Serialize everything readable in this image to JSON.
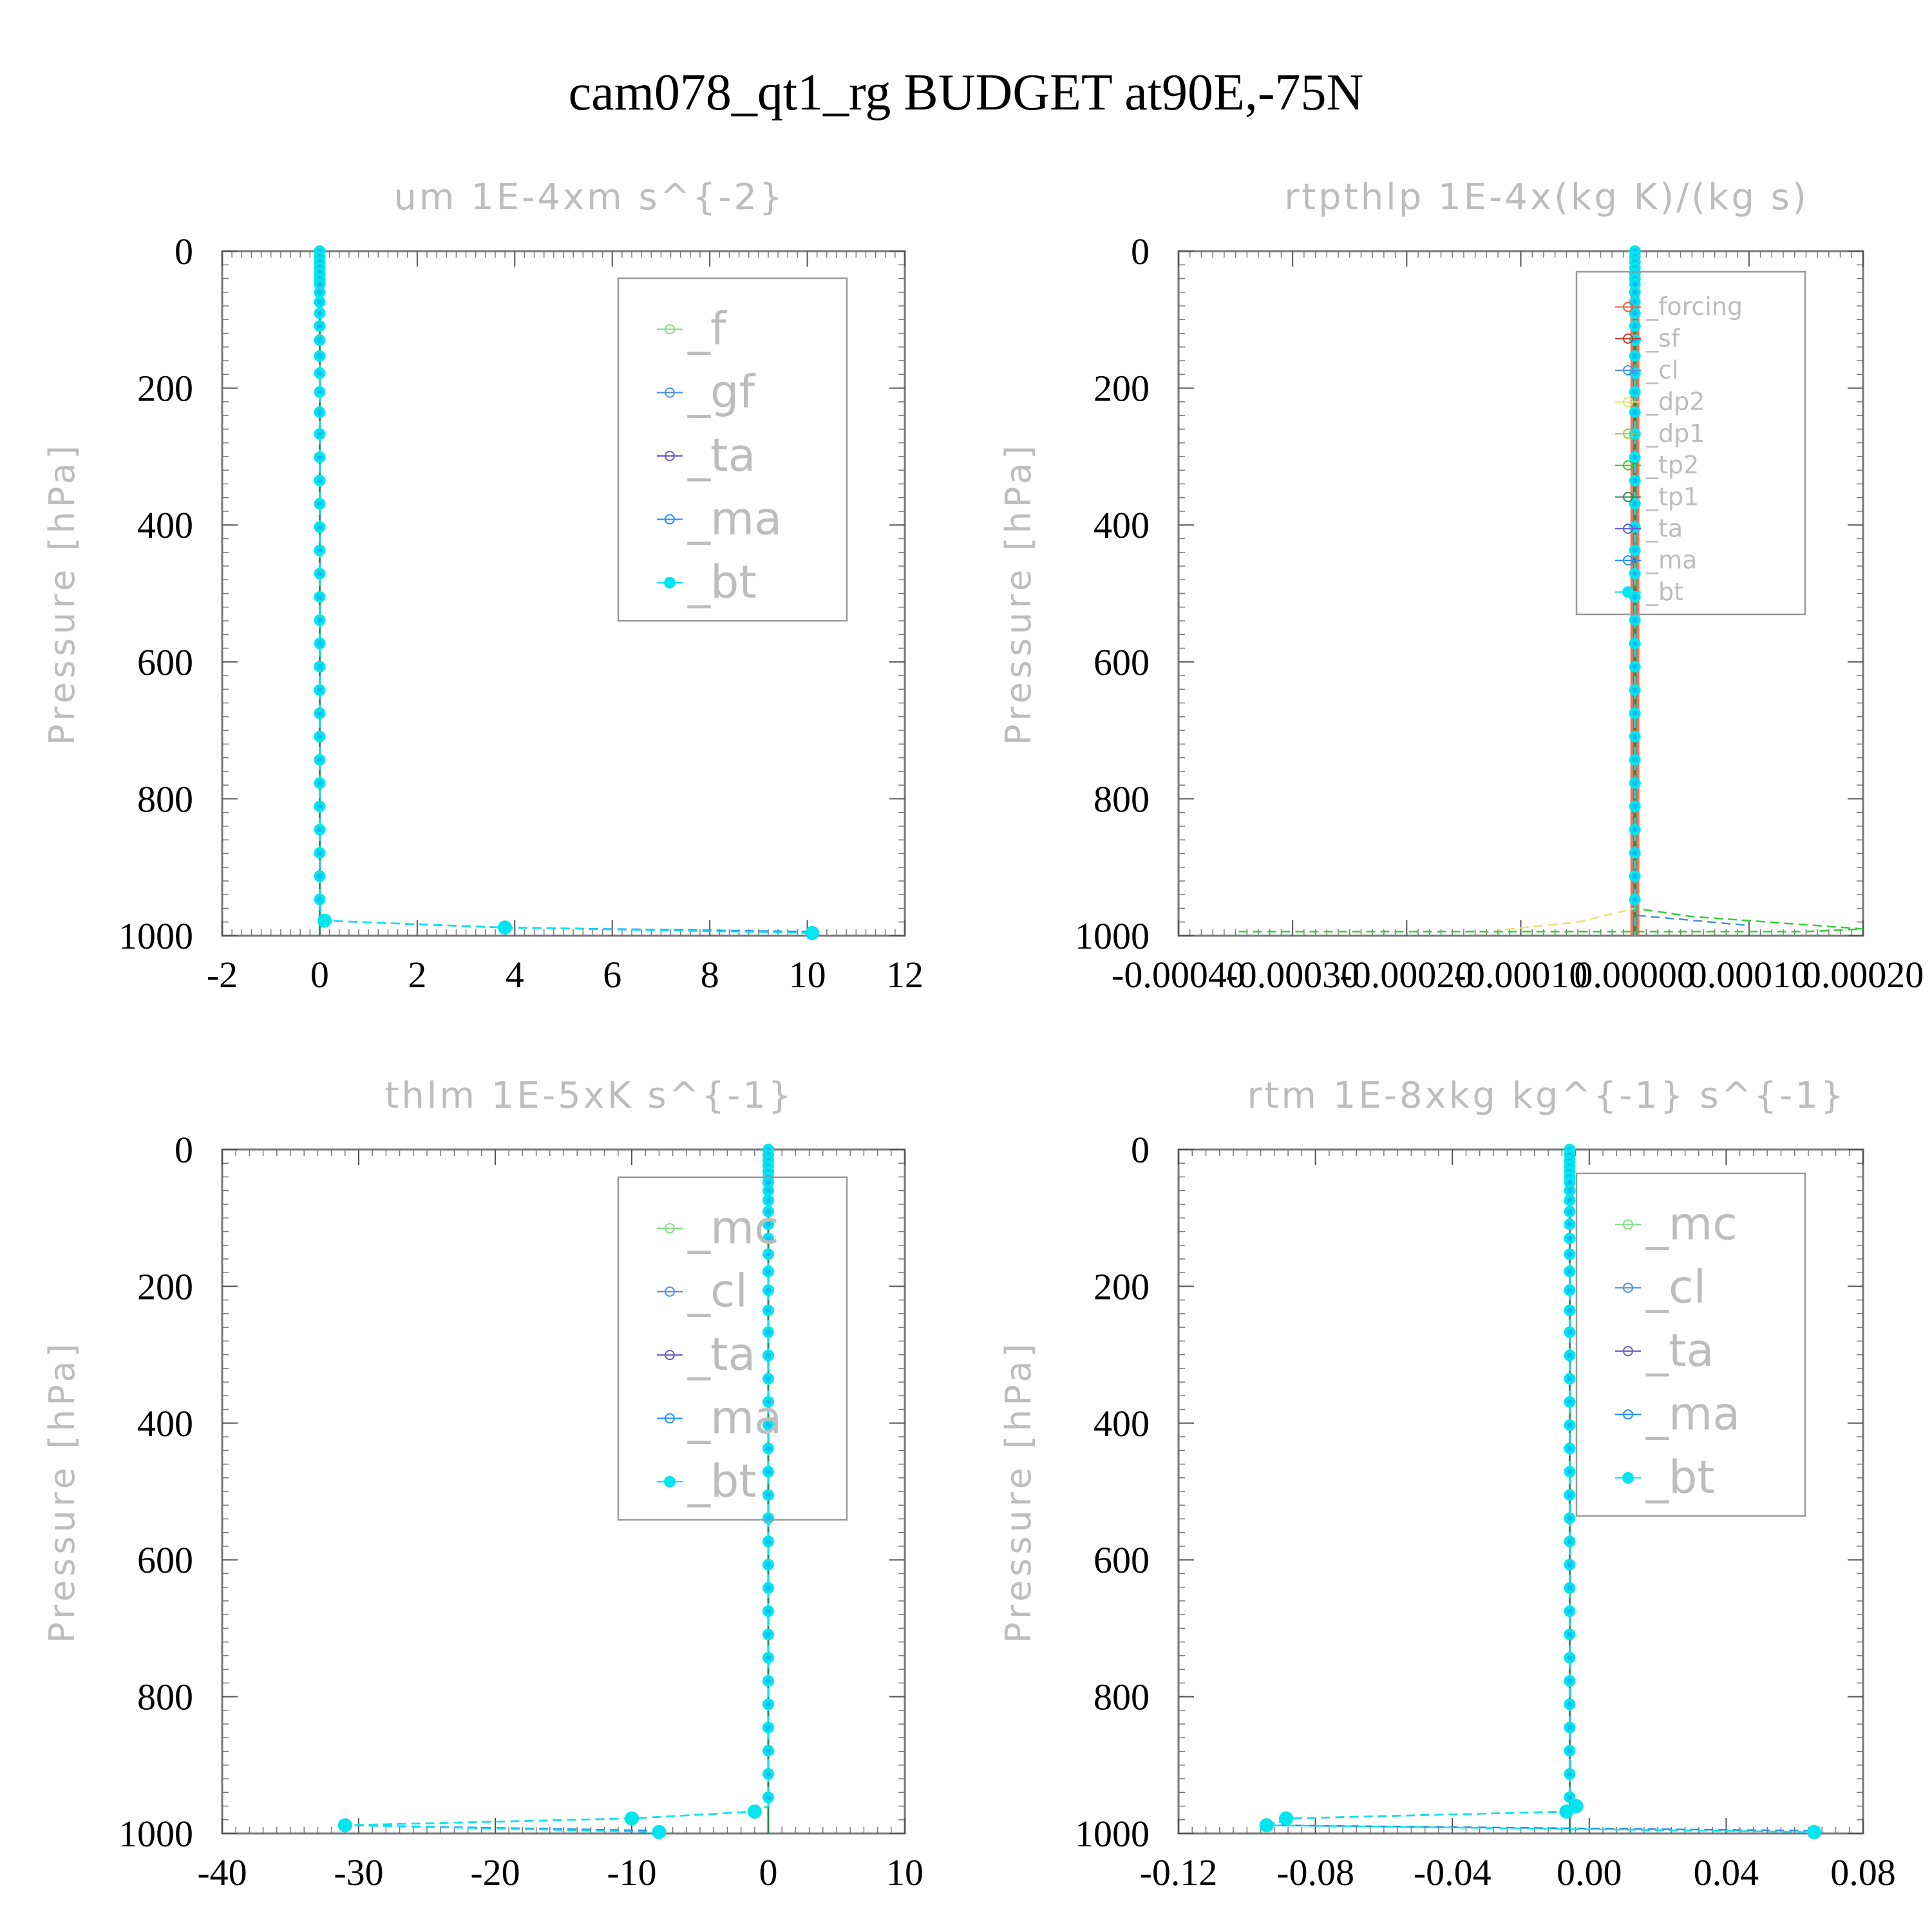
{
  "figure_title": "cam078_qt1_rg  BUDGET at90E,-75N",
  "colors": {
    "f": "#7fe07f",
    "mc": "#7fe07f",
    "gf": "#4a90d9",
    "cl": "#4a90d9",
    "ta": "#6a5acd",
    "ma": "#1e90ff",
    "bt": "#00e5ee",
    "forcing": "#e8603c",
    "sf": "#c0392b",
    "dp2": "#e6e070",
    "dp1": "#9acd32",
    "tp2": "#32cd32",
    "tp1": "#2e8b57"
  },
  "chart_data": [
    {
      "type": "line",
      "title": "um   1E-4xm s^{-2}",
      "ylabel": "Pressure [hPa]",
      "xlim": [
        -2,
        12
      ],
      "ylim": [
        1000,
        0
      ],
      "xticks": [
        "-2",
        "0",
        "2",
        "4",
        "6",
        "8",
        "10",
        "12"
      ],
      "yticks": [
        "0",
        "200",
        "400",
        "600",
        "800",
        "1000"
      ],
      "legend": [
        "_f",
        "_gf",
        "_ta",
        "_ma",
        "_bt"
      ],
      "series": [
        {
          "name": "_ma",
          "x": [
            0,
            0,
            0,
            0.1,
            3.7,
            10.0
          ],
          "y": [
            0,
            500,
            960,
            978,
            988,
            994
          ]
        },
        {
          "name": "_bt",
          "x": [
            0,
            0,
            0,
            0.1,
            3.8,
            10.1
          ],
          "y": [
            0,
            500,
            960,
            978,
            988,
            996
          ]
        }
      ]
    },
    {
      "type": "line",
      "title": "rtpthlp   1E-4x(kg K)/(kg s)",
      "ylabel": "Pressure [hPa]",
      "xlim": [
        -0.0004,
        0.0002
      ],
      "ylim": [
        1000,
        0
      ],
      "xticks": [
        "-0.00040",
        "-0.00030",
        "-0.00020",
        "-0.00010",
        "0.00000",
        "0.00010",
        "0.00020"
      ],
      "yticks": [
        "0",
        "200",
        "400",
        "600",
        "800",
        "1000"
      ],
      "legend": [
        "_forcing",
        "_sf",
        "_cl",
        "_dp2",
        "_dp1",
        "_tp2",
        "_tp1",
        "_ta",
        "_ma",
        "_bt"
      ],
      "series": [
        {
          "name": "_tp2",
          "x": [
            0,
            0,
            5e-05,
            0.0002,
            0.00015,
            -0.00035
          ],
          "y": [
            0,
            960,
            972,
            990,
            994,
            994
          ]
        },
        {
          "name": "_dp2",
          "x": [
            0,
            0,
            -5e-05,
            -0.00012
          ],
          "y": [
            0,
            960,
            980,
            992
          ]
        },
        {
          "name": "_cl",
          "x": [
            0,
            0,
            0.0001
          ],
          "y": [
            0,
            970,
            985
          ]
        },
        {
          "name": "_bt",
          "x": [
            0,
            0
          ],
          "y": [
            0,
            1000
          ]
        }
      ]
    },
    {
      "type": "line",
      "title": "thlm   1E-5xK s^{-1}",
      "ylabel": "Pressure [hPa]",
      "xlim": [
        -40,
        10
      ],
      "ylim": [
        1000,
        0
      ],
      "xticks": [
        "-40",
        "-30",
        "-20",
        "-10",
        "0",
        "10"
      ],
      "yticks": [
        "0",
        "200",
        "400",
        "600",
        "800",
        "1000"
      ],
      "legend": [
        "_mc",
        "_cl",
        "_ta",
        "_ma",
        "_bt"
      ],
      "series": [
        {
          "name": "_ma",
          "x": [
            0,
            0,
            -1,
            -10,
            -31,
            -8
          ],
          "y": [
            0,
            960,
            968,
            978,
            988,
            996
          ]
        },
        {
          "name": "_bt",
          "x": [
            0,
            0,
            -1,
            -10,
            -31,
            -8
          ],
          "y": [
            0,
            960,
            968,
            978,
            988,
            998
          ]
        }
      ]
    },
    {
      "type": "line",
      "title": "rtm   1E-8xkg kg^{-1} s^{-1}",
      "ylabel": "Pressure [hPa]",
      "xlim": [
        -0.12,
        0.09
      ],
      "ylim": [
        1000,
        0
      ],
      "xticks": [
        "-0.12",
        "-0.08",
        "-0.04",
        "0.00",
        "0.04",
        "0.08"
      ],
      "yticks": [
        "0",
        "200",
        "400",
        "600",
        "800",
        "1000"
      ],
      "legend": [
        "_mc",
        "_cl",
        "_ta",
        "_ma",
        "_bt"
      ],
      "series": [
        {
          "name": "_ma",
          "x": [
            0,
            0,
            0.002,
            -0.001,
            -0.085,
            -0.092,
            0.074
          ],
          "y": [
            0,
            950,
            960,
            968,
            978,
            988,
            996
          ]
        },
        {
          "name": "_bt",
          "x": [
            0,
            0,
            0.002,
            -0.001,
            -0.087,
            -0.093,
            0.075
          ],
          "y": [
            0,
            950,
            960,
            968,
            978,
            988,
            998
          ]
        }
      ]
    }
  ]
}
